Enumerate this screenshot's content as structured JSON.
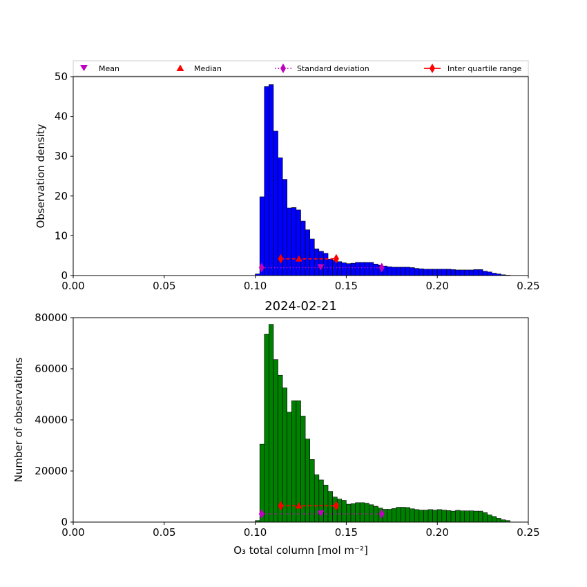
{
  "legend": {
    "mean": "Mean",
    "median": "Median",
    "std": "Standard deviation",
    "iqr": "Inter quartile range"
  },
  "colors": {
    "density_bars": "#0000ff",
    "count_bars": "#008000",
    "mean_std": "#c000c0",
    "median_iqr": "#ff0000"
  },
  "chart_data": [
    {
      "type": "bar",
      "title": "",
      "xlabel": "",
      "ylabel": "Observation density",
      "xlim": [
        0,
        0.25
      ],
      "ylim": [
        0,
        50
      ],
      "xticks": [
        "0.00",
        "0.05",
        "0.10",
        "0.15",
        "0.20",
        "0.25"
      ],
      "yticks": [
        "0",
        "10",
        "20",
        "30",
        "40",
        "50"
      ],
      "bin_start": 0.1,
      "bin_width": 0.0025,
      "values": [
        0.4,
        19.8,
        47.5,
        48.0,
        36.3,
        29.6,
        24.2,
        17.0,
        17.1,
        16.5,
        13.7,
        11.5,
        9.2,
        6.7,
        6.1,
        5.6,
        4.1,
        3.8,
        3.5,
        3.2,
        3.0,
        3.1,
        3.3,
        3.3,
        3.3,
        3.3,
        2.9,
        2.6,
        2.4,
        2.2,
        2.1,
        2.1,
        2.1,
        2.1,
        2.0,
        1.8,
        1.7,
        1.6,
        1.6,
        1.6,
        1.6,
        1.6,
        1.6,
        1.5,
        1.4,
        1.4,
        1.4,
        1.4,
        1.5,
        1.5,
        1.1,
        0.9,
        0.6,
        0.4,
        0.2,
        0.1
      ],
      "mean": 0.136,
      "median": 0.124,
      "std_range": [
        0.1035,
        0.1695
      ],
      "iqr_range": [
        0.114,
        0.1445
      ],
      "marker_y": {
        "mean_std": 2.0,
        "median_iqr": 4.2
      }
    },
    {
      "type": "bar",
      "title": "2024-02-21",
      "xlabel": "O₃ total column [mol m⁻²]",
      "ylabel": "Number of observations",
      "xlim": [
        0,
        0.25
      ],
      "ylim": [
        0,
        80000
      ],
      "xticks": [
        "0.00",
        "0.05",
        "0.10",
        "0.15",
        "0.20",
        "0.25"
      ],
      "yticks": [
        "0",
        "20000",
        "40000",
        "60000",
        "80000"
      ],
      "bin_start": 0.1,
      "bin_width": 0.0025,
      "values": [
        600,
        30500,
        73500,
        77400,
        63600,
        57500,
        52500,
        43000,
        47500,
        47500,
        41500,
        32500,
        24500,
        18500,
        16500,
        14500,
        12000,
        9800,
        9000,
        8500,
        7000,
        7200,
        7600,
        7600,
        7400,
        6800,
        6200,
        5500,
        5000,
        5000,
        5300,
        5800,
        5800,
        5700,
        5200,
        4900,
        4700,
        4700,
        4900,
        4700,
        4900,
        4700,
        4500,
        4300,
        4600,
        4400,
        4400,
        4400,
        4300,
        4300,
        3700,
        2800,
        2200,
        1500,
        900,
        600
      ],
      "mean": 0.136,
      "median": 0.124,
      "std_range": [
        0.1035,
        0.1695
      ],
      "iqr_range": [
        0.114,
        0.1445
      ],
      "marker_y": {
        "mean_std": 3200,
        "median_iqr": 6400
      }
    }
  ]
}
